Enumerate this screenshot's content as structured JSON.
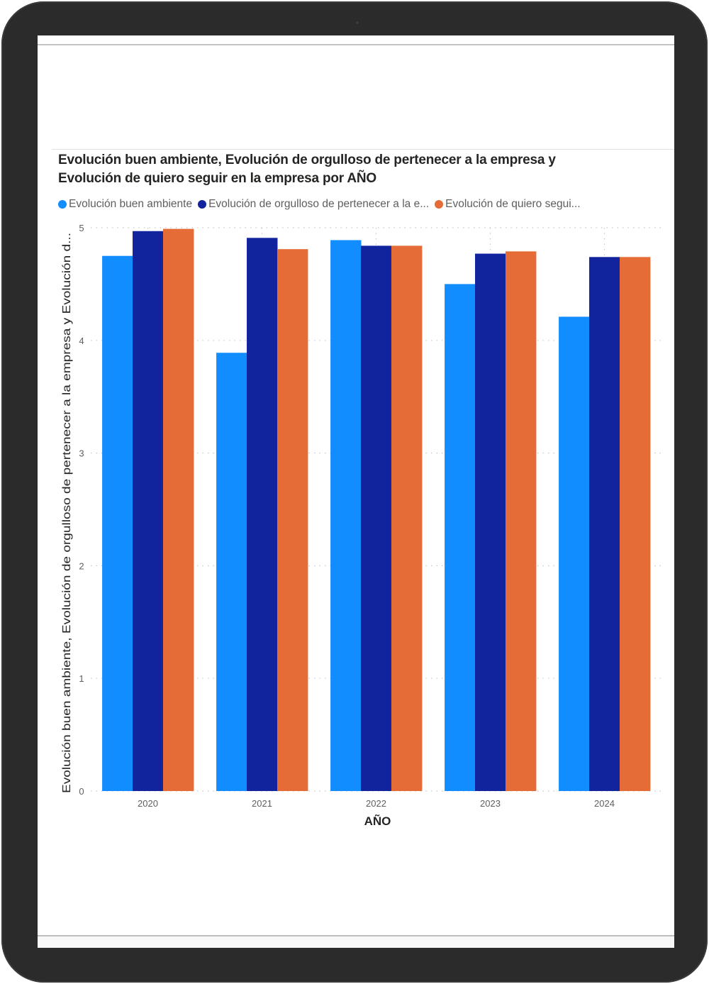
{
  "chart_data": {
    "type": "bar",
    "title": "Evolución buen ambiente, Evolución de orgulloso de pertenecer a la empresa y Evolución de quiero seguir en la empresa por AÑO",
    "title_lines": [
      "Evolución buen ambiente, Evolución de orgulloso de pertenecer a la empresa y",
      "Evolución de quiero seguir en la empresa por AÑO"
    ],
    "xlabel": "AÑO",
    "ylabel": "Evolución buen ambiente, Evolución de orgulloso de pertenecer a la empresa y Evolución d...",
    "categories": [
      "2020",
      "2021",
      "2022",
      "2023",
      "2024"
    ],
    "ylim": [
      0,
      5
    ],
    "yticks": [
      "0",
      "1",
      "2",
      "3",
      "4",
      "5"
    ],
    "grid": true,
    "legend_position": "top-left",
    "series": [
      {
        "name": "Evolución buen ambiente",
        "legend_label": "Evolución buen ambiente",
        "color": "#118DFF",
        "values": [
          4.75,
          3.89,
          4.89,
          4.5,
          4.21
        ]
      },
      {
        "name": "Evolución de orgulloso de pertenecer a la empresa",
        "legend_label": "Evolución de orgulloso de pertenecer a la e...",
        "color": "#12239E",
        "values": [
          4.97,
          4.91,
          4.84,
          4.77,
          4.74
        ]
      },
      {
        "name": "Evolución de quiero seguir en la empresa",
        "legend_label": "Evolución de quiero segui...",
        "color": "#E66C37",
        "values": [
          4.99,
          4.81,
          4.84,
          4.79,
          4.74
        ]
      }
    ]
  },
  "colors": {
    "device_frame": "#2b2b2b",
    "grid": "#c8c8c8"
  }
}
